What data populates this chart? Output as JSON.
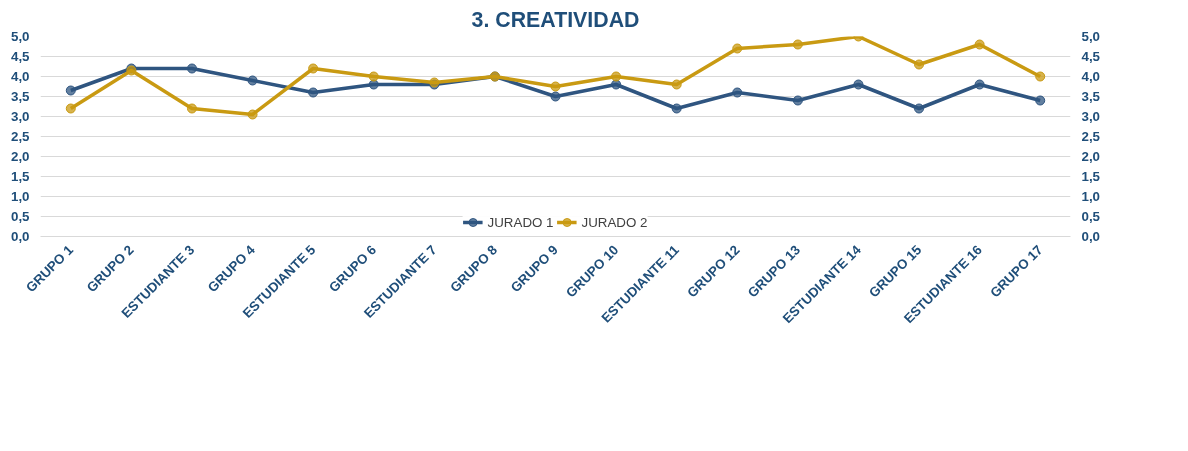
{
  "chart_data": {
    "type": "line",
    "title": "3. CREATIVIDAD",
    "categories": [
      "GRUPO 1",
      "GRUPO 2",
      "ESTUDIANTE 3",
      "GRUPO 4",
      "ESTUDIANTE 5",
      "GRUPO 6",
      "ESTUDIANTE 7",
      "GRUPO 8",
      "GRUPO 9",
      "GRUPO 10",
      "ESTUDIANTE 11",
      "GRUPO 12",
      "GRUPO 13",
      "ESTUDIANTE 14",
      "GRUPO 15",
      "ESTUDIANTE 16",
      "GRUPO 17"
    ],
    "series": [
      {
        "name": "JURADO 1",
        "color": "#2f5580",
        "values": [
          3.65,
          4.2,
          4.2,
          3.9,
          3.6,
          3.8,
          3.8,
          4.0,
          3.5,
          3.8,
          3.2,
          3.6,
          3.4,
          3.8,
          3.2,
          3.8,
          3.4
        ]
      },
      {
        "name": "JURADO 2",
        "color": "#c99a12",
        "values": [
          3.2,
          4.15,
          3.2,
          3.05,
          4.2,
          4.0,
          3.85,
          4.0,
          3.75,
          4.0,
          3.8,
          4.7,
          4.8,
          5.0,
          4.3,
          4.8,
          4.0
        ]
      }
    ],
    "ylim": [
      0,
      5
    ],
    "yticks": [
      {
        "value": 0,
        "label": "0,0"
      },
      {
        "value": 0.5,
        "label": "0,5"
      },
      {
        "value": 1,
        "label": "1,0"
      },
      {
        "value": 1.5,
        "label": "1,5"
      },
      {
        "value": 2,
        "label": "2,0"
      },
      {
        "value": 2.5,
        "label": "2,5"
      },
      {
        "value": 3,
        "label": "3,0"
      },
      {
        "value": 3.5,
        "label": "3,5"
      },
      {
        "value": 4,
        "label": "4,0"
      },
      {
        "value": 4.5,
        "label": "4,5"
      },
      {
        "value": 5,
        "label": "5,0"
      }
    ],
    "y2lim": [
      0,
      5
    ],
    "y2ticks": [
      {
        "value": 0,
        "label": "0,0"
      },
      {
        "value": 0.5,
        "label": "0,5"
      },
      {
        "value": 1,
        "label": "1,0"
      },
      {
        "value": 1.5,
        "label": "1,5"
      },
      {
        "value": 2,
        "label": "2,0"
      },
      {
        "value": 2.5,
        "label": "2,5"
      },
      {
        "value": 3,
        "label": "3,0"
      },
      {
        "value": 3.5,
        "label": "3,5"
      },
      {
        "value": 4,
        "label": "4,0"
      },
      {
        "value": 4.5,
        "label": "4,5"
      },
      {
        "value": 5,
        "label": "5,0"
      }
    ],
    "grid": "y",
    "legend": "bottom",
    "marker": "circle",
    "line_style": "solid"
  }
}
